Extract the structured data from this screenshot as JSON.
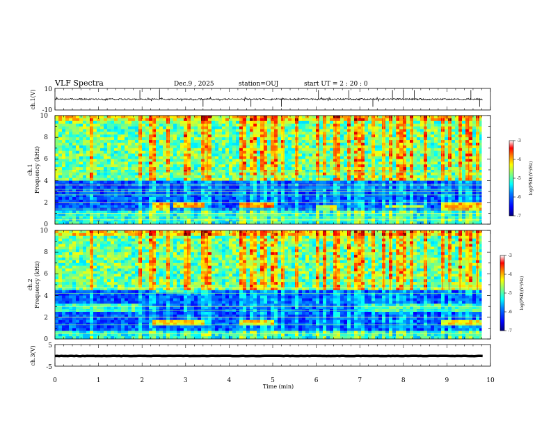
{
  "header": {
    "title": "VLF Spectra",
    "date": "Dec.9  , 2025",
    "station": "station=OUJ",
    "start": "start  UT =   2 : 20 : 0"
  },
  "colors": {
    "background": "#ffffff",
    "axes": "#000000",
    "colormap": [
      "#00007f",
      "#0000ff",
      "#007fff",
      "#00ffff",
      "#7fff7f",
      "#ffff00",
      "#ff7f00",
      "#ff0000",
      "#7f0000"
    ]
  },
  "chart_data": [
    {
      "type": "line",
      "name": "ch.1 waveform",
      "ylabel": "ch.1(V)",
      "ylim": [
        -10,
        10
      ],
      "yticks": [
        "10",
        "-10"
      ],
      "xlim": [
        0,
        10
      ],
      "level": 0,
      "noise_amplitude": 0.7,
      "spikes_min": [
        1.95,
        2.4,
        3.4,
        4.5,
        5.2,
        6.05,
        6.75,
        7.3,
        7.75,
        8.0,
        8.25,
        9.55,
        9.75
      ]
    },
    {
      "type": "heatmap",
      "name": "ch.1 spectrogram",
      "ylabel": "Frequency (kHz)",
      "panel_label": "ch.1",
      "xlim": [
        0,
        9.8
      ],
      "ylim": [
        0,
        10
      ],
      "yticks": [
        "0",
        "2",
        "4",
        "6",
        "8",
        "10"
      ],
      "upper_level": 4.6,
      "low_band_khz": [
        1.3,
        4.0
      ],
      "lines_khz": [
        0.4,
        0.7,
        1.0,
        1.4,
        2.0,
        2.7,
        3.0,
        3.2,
        3.6,
        4.8
      ],
      "features": [
        {
          "t0": 2.2,
          "t1": 2.6,
          "f0": 1.3,
          "f1": 2.0,
          "level": 6.5
        },
        {
          "t0": 2.7,
          "t1": 3.4,
          "f0": 1.4,
          "f1": 1.9,
          "level": 6.5
        },
        {
          "t0": 4.2,
          "t1": 5.0,
          "f0": 1.4,
          "f1": 2.0,
          "level": 7
        },
        {
          "t0": 6.0,
          "t1": 6.5,
          "f0": 1.3,
          "f1": 1.8,
          "level": 5.5
        },
        {
          "t0": 7.6,
          "t1": 8.5,
          "f0": 1.4,
          "f1": 1.8,
          "level": 5
        },
        {
          "t0": 8.9,
          "t1": 9.8,
          "f0": 1.3,
          "f1": 1.9,
          "level": 6.5
        },
        {
          "t0": 2.5,
          "t1": 3.4,
          "f0": 4.2,
          "f1": 4.6,
          "level": 4.5
        },
        {
          "t0": 4.2,
          "t1": 5.0,
          "f0": 4.2,
          "f1": 4.6,
          "level": 4.5
        },
        {
          "t0": 5.8,
          "t1": 6.5,
          "f0": 4.2,
          "f1": 4.6,
          "level": 4
        }
      ]
    },
    {
      "type": "heatmap",
      "name": "ch.2 spectrogram",
      "ylabel": "Frequency (kHz)",
      "panel_label": "ch.2",
      "xlim": [
        0,
        9.8
      ],
      "ylim": [
        0,
        10
      ],
      "yticks": [
        "0",
        "2",
        "4",
        "6",
        "8",
        "10"
      ],
      "upper_level": 4.6,
      "low_band_khz": [
        0.8,
        4.5
      ],
      "lines_khz": [
        0.5,
        1.3,
        2.0,
        2.6,
        3.0,
        4.2,
        4.7
      ],
      "features": [
        {
          "t0": 0.0,
          "t1": 1.9,
          "f0": 2.4,
          "f1": 3.2,
          "level": 4
        },
        {
          "t0": 7.0,
          "t1": 9.8,
          "f0": 2.4,
          "f1": 3.2,
          "level": 4
        },
        {
          "t0": 8.9,
          "t1": 9.8,
          "f0": 4.6,
          "f1": 5.2,
          "level": 5.5
        },
        {
          "t0": 2.2,
          "t1": 3.4,
          "f0": 1.2,
          "f1": 1.8,
          "level": 6
        },
        {
          "t0": 4.2,
          "t1": 5.0,
          "f0": 1.2,
          "f1": 1.8,
          "level": 6
        },
        {
          "t0": 8.9,
          "t1": 9.8,
          "f0": 1.2,
          "f1": 1.7,
          "level": 6
        },
        {
          "t0": 2.2,
          "t1": 3.5,
          "f0": 4.2,
          "f1": 4.5,
          "level": 4
        }
      ]
    },
    {
      "type": "line",
      "name": "ch.3 waveform",
      "ylabel": "ch.3(V)",
      "ylim": [
        -5,
        5
      ],
      "yticks": [
        "5",
        "-5"
      ],
      "xlim": [
        0,
        10
      ],
      "level": -0.3,
      "noise_amplitude": 0.15
    }
  ],
  "colorbars": [
    {
      "label": "log(PSD)(V²/Hz)",
      "vmin": -7,
      "vmax": -3,
      "ticks": [
        "-3",
        "-4",
        "-5",
        "-6",
        "-7"
      ]
    },
    {
      "label": "log(PSD)(V²/Hz)",
      "vmin": -7,
      "vmax": -3,
      "ticks": [
        "-3",
        "-4",
        "-5",
        "-6",
        "-7"
      ]
    }
  ],
  "x_axis": {
    "label": "Time (min)",
    "range": [
      0,
      10
    ],
    "ticks": [
      "0",
      "1",
      "2",
      "3",
      "4",
      "5",
      "6",
      "7",
      "8",
      "9",
      "10"
    ]
  },
  "spike_times_min": [
    0.85,
    1.95,
    2.25,
    2.6,
    3.05,
    3.4,
    3.5,
    4.3,
    4.55,
    4.8,
    5.05,
    5.25,
    5.55,
    6.05,
    6.2,
    6.45,
    6.75,
    6.95,
    7.05,
    7.3,
    7.55,
    7.7,
    7.85,
    8.0,
    8.2,
    8.5,
    8.9,
    9.05,
    9.3,
    9.5,
    9.7
  ]
}
